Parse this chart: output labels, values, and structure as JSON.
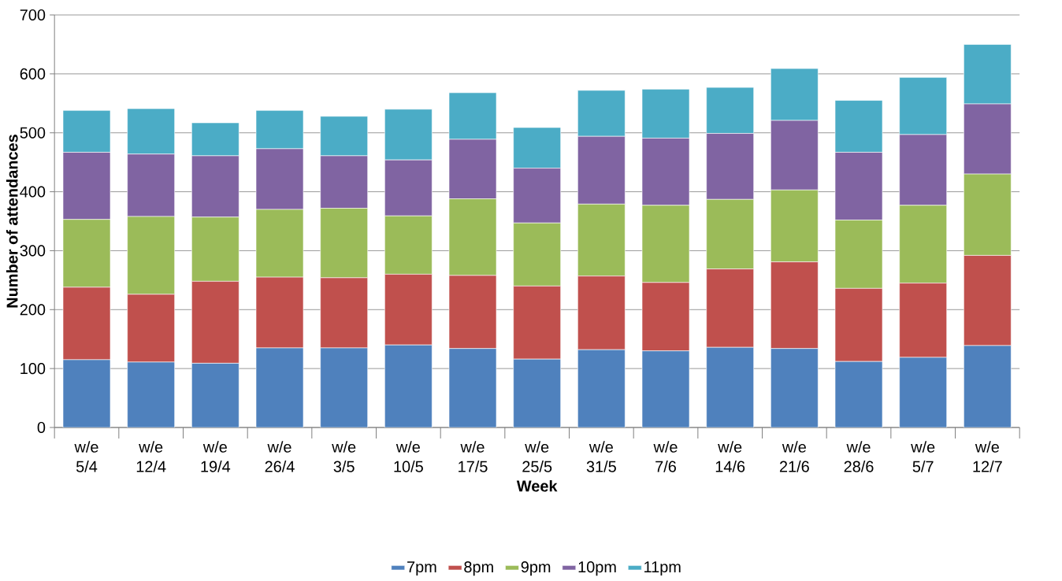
{
  "chart_data": {
    "type": "bar",
    "stacked": true,
    "xlabel": "Week",
    "ylabel": "Number of attendances",
    "categories": [
      "w/e 5/4",
      "w/e 12/4",
      "w/e 19/4",
      "w/e 26/4",
      "w/e 3/5",
      "w/e 10/5",
      "w/e 17/5",
      "w/e 25/5",
      "w/e 31/5",
      "w/e 7/6",
      "w/e 14/6",
      "w/e 21/6",
      "w/e 28/6",
      "w/e 5/7",
      "w/e 12/7"
    ],
    "series": [
      {
        "name": "7pm",
        "color": "#4f81bd",
        "values": [
          115,
          111,
          109,
          135,
          135,
          140,
          134,
          116,
          132,
          130,
          136,
          134,
          112,
          119,
          139
        ]
      },
      {
        "name": "8pm",
        "color": "#c0504d",
        "values": [
          123,
          115,
          139,
          120,
          119,
          120,
          124,
          124,
          125,
          116,
          133,
          147,
          124,
          126,
          153
        ]
      },
      {
        "name": "9pm",
        "color": "#9bbb59",
        "values": [
          115,
          132,
          109,
          115,
          118,
          99,
          130,
          107,
          122,
          131,
          118,
          122,
          116,
          132,
          138
        ]
      },
      {
        "name": "10pm",
        "color": "#8064a2",
        "values": [
          114,
          106,
          104,
          103,
          89,
          95,
          101,
          93,
          115,
          114,
          112,
          118,
          115,
          120,
          119
        ]
      },
      {
        "name": "11pm",
        "color": "#4bacc6",
        "values": [
          71,
          77,
          56,
          65,
          67,
          86,
          79,
          69,
          78,
          83,
          78,
          88,
          88,
          97,
          101
        ]
      }
    ],
    "ylim": [
      0,
      700
    ],
    "yticks": [
      0,
      100,
      200,
      300,
      400,
      500,
      600,
      700
    ],
    "grid": "y",
    "legend": "bottom"
  }
}
